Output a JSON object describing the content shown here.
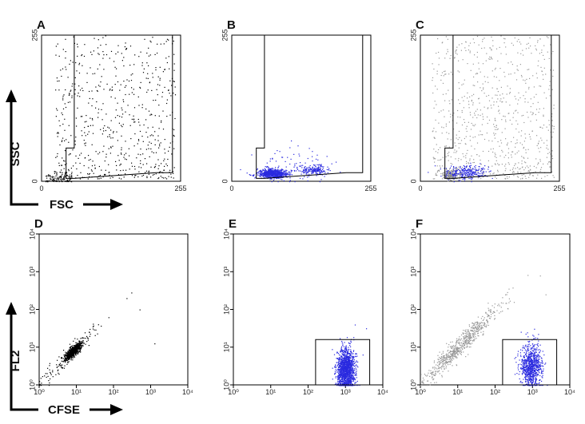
{
  "chart_data": [
    {
      "type": "scatter",
      "panel": "A",
      "scale": "linear",
      "xlim": [
        0,
        255
      ],
      "ylim": [
        0,
        255
      ],
      "xticks": [
        "0",
        "255"
      ],
      "yticks": [
        "0",
        "255"
      ],
      "gate": [
        [
          45,
          5
        ],
        [
          45,
          58
        ],
        [
          60,
          58
        ],
        [
          60,
          255
        ],
        [
          240,
          255
        ],
        [
          240,
          15
        ],
        [
          210,
          15
        ],
        [
          60,
          5
        ]
      ],
      "populations": [
        {
          "kind": "debris",
          "color": "#000000",
          "x": [
            5,
            55
          ],
          "y": [
            0,
            18
          ],
          "count": 120,
          "seed": 11
        },
        {
          "kind": "spread",
          "color": "#000000",
          "x": [
            25,
            245
          ],
          "y": [
            5,
            255
          ],
          "count": 620,
          "seed": 12
        }
      ]
    },
    {
      "type": "scatter",
      "panel": "B",
      "scale": "linear",
      "xlim": [
        0,
        255
      ],
      "ylim": [
        0,
        255
      ],
      "xticks": [
        "0",
        "255"
      ],
      "yticks": [
        "0",
        "255"
      ],
      "gate": [
        [
          45,
          5
        ],
        [
          45,
          58
        ],
        [
          60,
          58
        ],
        [
          60,
          255
        ],
        [
          240,
          255
        ],
        [
          240,
          15
        ],
        [
          210,
          15
        ],
        [
          60,
          5
        ]
      ],
      "populations": [
        {
          "kind": "cluster",
          "color": "#2a2adf",
          "cx": 75,
          "cy": 14,
          "sx": 14,
          "sy": 4,
          "count": 700,
          "seed": 21
        },
        {
          "kind": "cluster",
          "color": "#2a2adf",
          "cx": 150,
          "cy": 20,
          "sx": 12,
          "sy": 4,
          "count": 180,
          "seed": 22
        },
        {
          "kind": "cluster",
          "color": "#2a2adf",
          "cx": 110,
          "cy": 25,
          "sx": 35,
          "sy": 15,
          "count": 90,
          "seed": 23
        }
      ]
    },
    {
      "type": "scatter",
      "panel": "C",
      "scale": "linear",
      "xlim": [
        0,
        255
      ],
      "ylim": [
        0,
        255
      ],
      "xticks": [
        "0",
        "255"
      ],
      "yticks": [
        "0",
        "255"
      ],
      "gate": [
        [
          45,
          5
        ],
        [
          45,
          58
        ],
        [
          60,
          58
        ],
        [
          60,
          255
        ],
        [
          240,
          255
        ],
        [
          240,
          15
        ],
        [
          210,
          15
        ],
        [
          60,
          5
        ]
      ],
      "populations": [
        {
          "kind": "spread",
          "color": "#9a9a9a",
          "x": [
            20,
            245
          ],
          "y": [
            5,
            255
          ],
          "count": 800,
          "seed": 31
        },
        {
          "kind": "cluster",
          "color": "#888888",
          "cx": 55,
          "cy": 12,
          "sx": 10,
          "sy": 5,
          "count": 150,
          "seed": 32
        },
        {
          "kind": "cluster",
          "color": "#2a2adf",
          "cx": 85,
          "cy": 16,
          "sx": 20,
          "sy": 6,
          "count": 260,
          "seed": 33
        }
      ]
    },
    {
      "type": "scatter",
      "panel": "D",
      "scale": "log",
      "xlim": [
        1,
        10000
      ],
      "ylim": [
        1,
        10000
      ],
      "xticks": [
        "10⁰",
        "10¹",
        "10²",
        "10³",
        "10⁴"
      ],
      "yticks": [
        "10⁰",
        "10¹",
        "10²",
        "10³",
        "10⁴"
      ],
      "gate": [],
      "populations": [
        {
          "kind": "diag",
          "color": "#000000",
          "c": 0.9,
          "s": 0.1,
          "w": 0.05,
          "count": 700,
          "seed": 41
        },
        {
          "kind": "diag",
          "color": "#000000",
          "c": 0.8,
          "s": 0.45,
          "w": 0.1,
          "count": 140,
          "seed": 42
        },
        {
          "kind": "fixed",
          "color": "#000000",
          "pts": [
            [
              2.35,
              2.3
            ],
            [
              2.7,
              2.0
            ],
            [
              3.1,
              1.1
            ]
          ]
        }
      ]
    },
    {
      "type": "scatter",
      "panel": "E",
      "scale": "log",
      "xlim": [
        1,
        10000
      ],
      "ylim": [
        1,
        10000
      ],
      "xticks": [
        "10⁰",
        "10¹",
        "10²",
        "10³",
        "10⁴"
      ],
      "yticks": [
        "10⁰",
        "10¹",
        "10²",
        "10³",
        "10⁴"
      ],
      "gate": [
        [
          2.2,
          0
        ],
        [
          3.65,
          0
        ],
        [
          3.65,
          1.2
        ],
        [
          2.2,
          1.2
        ]
      ],
      "populations": [
        {
          "kind": "cluster",
          "color": "#2a2adf",
          "cx": 3.0,
          "cy": 0.4,
          "sx": 0.12,
          "sy": 0.28,
          "count": 1400,
          "seed": 51
        },
        {
          "kind": "fixed",
          "color": "#2a2adf",
          "pts": [
            [
              3.55,
              1.5
            ],
            [
              3.25,
              1.6
            ]
          ]
        }
      ]
    },
    {
      "type": "scatter",
      "panel": "F",
      "scale": "log",
      "xlim": [
        1,
        10000
      ],
      "ylim": [
        1,
        10000
      ],
      "xticks": [
        "10⁰",
        "10¹",
        "10²",
        "10³",
        "10⁴"
      ],
      "yticks": [
        "10⁰",
        "10¹",
        "10²",
        "10³",
        "10⁴"
      ],
      "gate": [
        [
          2.2,
          0
        ],
        [
          3.65,
          0
        ],
        [
          3.65,
          1.2
        ],
        [
          2.2,
          1.2
        ]
      ],
      "populations": [
        {
          "kind": "diag",
          "color": "#999999",
          "c": 1.05,
          "s": 0.5,
          "w": 0.1,
          "count": 700,
          "seed": 61
        },
        {
          "kind": "cluster",
          "color": "#2a2adf",
          "cx": 2.95,
          "cy": 0.5,
          "sx": 0.14,
          "sy": 0.28,
          "count": 850,
          "seed": 62
        },
        {
          "kind": "fixed",
          "color": "#999999",
          "pts": [
            [
              2.5,
              2.2
            ],
            [
              3.2,
              2.9
            ],
            [
              3.35,
              2.4
            ]
          ]
        }
      ]
    }
  ],
  "axis_labels": {
    "row1_y": "SSC",
    "row1_x": "FSC",
    "row2_y": "FL2",
    "row2_x": "CFSE"
  }
}
